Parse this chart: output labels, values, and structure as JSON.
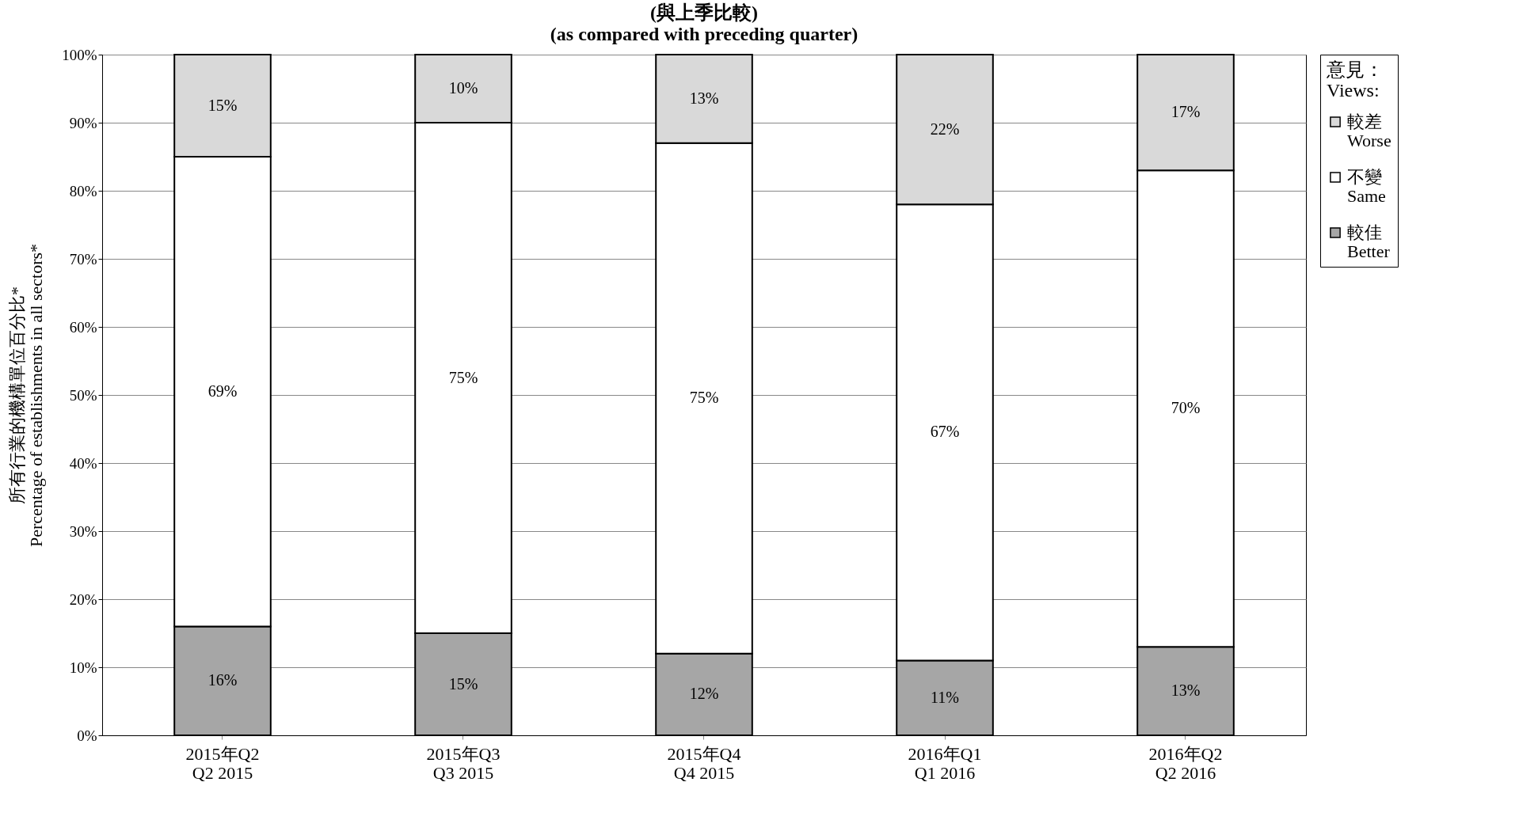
{
  "chart_data": {
    "type": "bar",
    "stacked": true,
    "title": "(與上季比較)",
    "subtitle": "(as compared with preceding quarter)",
    "ylabel": "所有行業的機構單位百分比*\nPercentage of establishments in all sectors*",
    "legend_title": "意見：\nViews:",
    "categories": [
      "2015年Q2\nQ2 2015",
      "2015年Q3\nQ3 2015",
      "2015年Q4\nQ4 2015",
      "2016年Q1\nQ1 2016",
      "2016年Q2\nQ2 2016"
    ],
    "series": [
      {
        "name": "較佳\nBetter",
        "color": "#a6a6a6",
        "values": [
          16,
          15,
          12,
          11,
          13
        ],
        "value_labels": [
          "16%",
          "15%",
          "12%",
          "11%",
          "13%"
        ]
      },
      {
        "name": "不變\nSame",
        "color": "#ffffff",
        "values": [
          69,
          75,
          75,
          67,
          70
        ],
        "value_labels": [
          "69%",
          "75%",
          "75%",
          "67%",
          "70%"
        ]
      },
      {
        "name": "較差\nWorse",
        "color": "#d9d9d9",
        "values": [
          15,
          10,
          13,
          22,
          17
        ],
        "value_labels": [
          "15%",
          "10%",
          "13%",
          "22%",
          "17%"
        ]
      }
    ],
    "ylim": [
      0,
      100
    ],
    "yticks": [
      {
        "value": 0,
        "label": "0%"
      },
      {
        "value": 10,
        "label": "10%"
      },
      {
        "value": 20,
        "label": "20%"
      },
      {
        "value": 30,
        "label": "30%"
      },
      {
        "value": 40,
        "label": "40%"
      },
      {
        "value": 50,
        "label": "50%"
      },
      {
        "value": 60,
        "label": "60%"
      },
      {
        "value": 70,
        "label": "70%"
      },
      {
        "value": 80,
        "label": "80%"
      },
      {
        "value": 90,
        "label": "90%"
      },
      {
        "value": 100,
        "label": "100%"
      }
    ],
    "grid": "y",
    "legend": "right"
  }
}
